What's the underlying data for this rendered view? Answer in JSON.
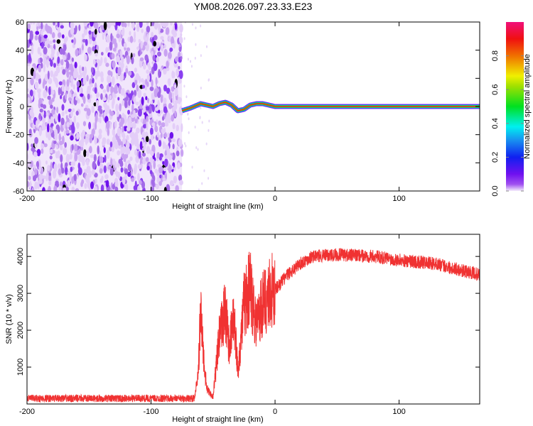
{
  "title": "YM08.2026.097.23.33.E23",
  "chart_data": [
    {
      "type": "heatmap",
      "xlabel": "Height of straight line (km)",
      "ylabel": "Frequency (Hz)",
      "xlim": [
        -200,
        165
      ],
      "ylim": [
        -60,
        60
      ],
      "xticks": [
        -200,
        -100,
        0,
        100
      ],
      "yticks": [
        -60,
        -40,
        -20,
        0,
        20,
        40,
        60
      ],
      "noise_region_x": [
        -200,
        -75
      ],
      "ridge": {
        "x": [
          -75,
          -68,
          -60,
          -55,
          -50,
          -45,
          -40,
          -35,
          -30,
          -25,
          -20,
          -15,
          -10,
          -5,
          0,
          165
        ],
        "freq": [
          -3,
          -1,
          2,
          1,
          0,
          2,
          3,
          1,
          -3,
          -2,
          1,
          2,
          2,
          1,
          0,
          0
        ]
      },
      "colorbar": {
        "label": "Normalized spectral amplitude",
        "ticks": [
          "0.0",
          "0.2",
          "0.4",
          "0.6",
          "0.8"
        ],
        "range": [
          0,
          1
        ]
      }
    },
    {
      "type": "line",
      "xlabel": "Height of straight line (km)",
      "ylabel": "SNR (10 * v/v)",
      "xlim": [
        -200,
        165
      ],
      "ylim": [
        0,
        4600
      ],
      "xticks": [
        -200,
        -100,
        0,
        100
      ],
      "yticks": [
        1000,
        2000,
        3000,
        4000
      ],
      "color": "#f03232",
      "series": [
        {
          "name": "SNR",
          "x": [
            -200,
            -65,
            -62,
            -60,
            -57,
            -55,
            -50,
            -45,
            -40,
            -37,
            -33,
            -30,
            -25,
            -20,
            -15,
            -10,
            -5,
            0,
            10,
            20,
            30,
            50,
            80,
            100,
            130,
            165
          ],
          "y": [
            150,
            150,
            800,
            2500,
            1000,
            400,
            200,
            1800,
            2600,
            1500,
            2400,
            900,
            2700,
            3200,
            2200,
            2700,
            3000,
            3100,
            3500,
            3800,
            4000,
            4050,
            4000,
            3900,
            3800,
            3500
          ]
        }
      ]
    }
  ]
}
